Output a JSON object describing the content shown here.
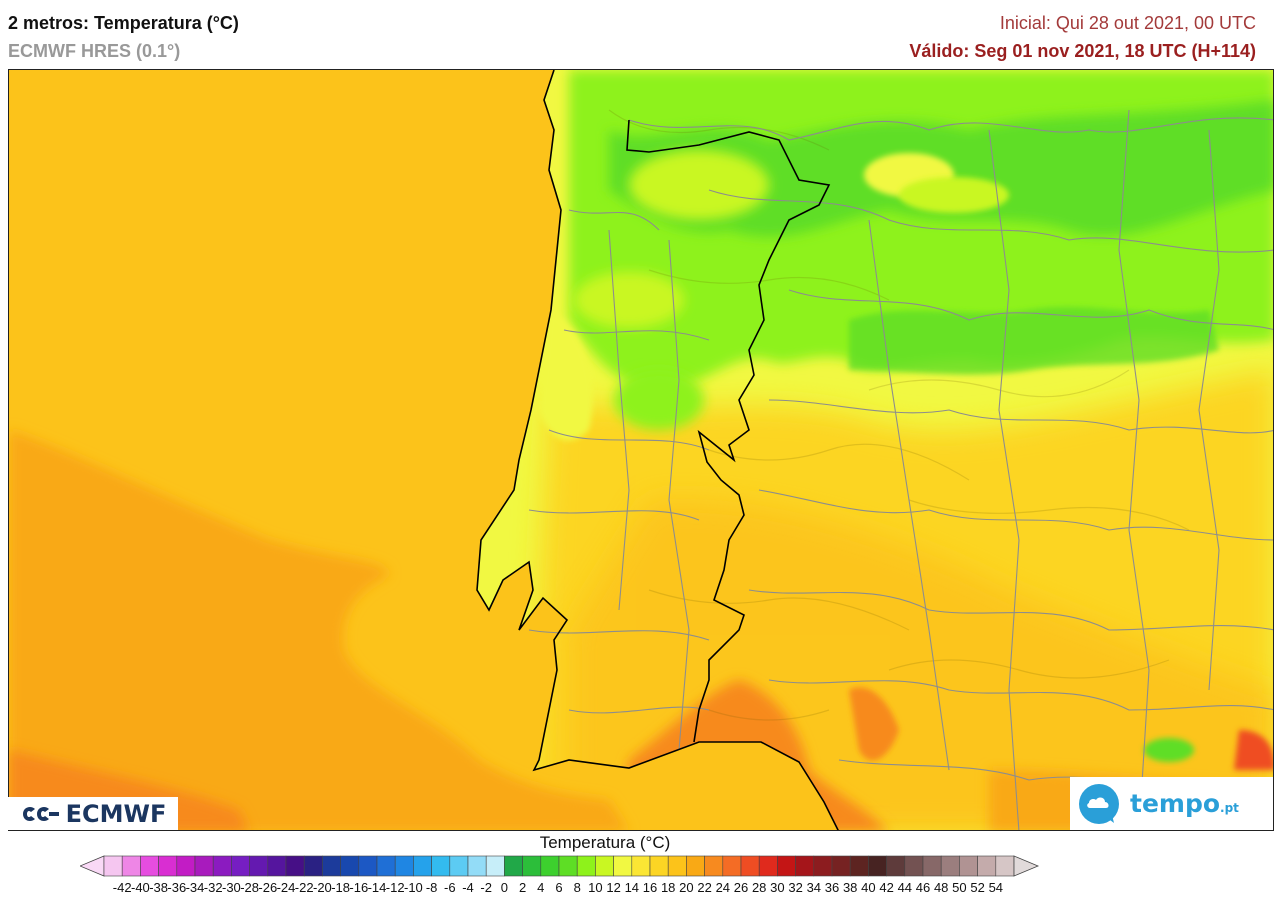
{
  "header": {
    "title": "2 metros: Temperatura (°C)",
    "model": "ECMWF HRES (0.1°)",
    "run_init": "Inicial: Qui 28 out 2021, 00 UTC",
    "run_valid": "Válido: Seg 01 nov 2021, 18 UTC (H+114)"
  },
  "logos": {
    "ecmwf": "ECMWF",
    "tempo": "tempo",
    "tempo_suffix": ".pt"
  },
  "legend": {
    "title": "Temperatura (°C)",
    "ticks": [
      "-42",
      "-40",
      "-38",
      "-36",
      "-34",
      "-32",
      "-30",
      "-28",
      "-26",
      "-24",
      "-22",
      "-20",
      "-18",
      "-16",
      "-14",
      "-12",
      "-10",
      "-8",
      "-6",
      "-4",
      "-2",
      "0",
      "2",
      "4",
      "6",
      "8",
      "10",
      "12",
      "14",
      "16",
      "18",
      "20",
      "22",
      "24",
      "26",
      "28",
      "30",
      "32",
      "34",
      "36",
      "38",
      "40",
      "42",
      "44",
      "46",
      "48",
      "50",
      "52",
      "54"
    ],
    "colors": [
      "#f5c6f0",
      "#ee86e6",
      "#e64de0",
      "#d92ed2",
      "#c21cc5",
      "#a81bbd",
      "#8b1bc0",
      "#761ec2",
      "#6419b0",
      "#55159e",
      "#460f86",
      "#2a2183",
      "#1c3b9b",
      "#1848ae",
      "#1c58c4",
      "#1f6fd6",
      "#1f86e3",
      "#25a2eb",
      "#33bbef",
      "#5ccbf3",
      "#93dcf7",
      "#c7eef9",
      "#21a848",
      "#2cbe3a",
      "#3dd02e",
      "#5ede25",
      "#8ef21b",
      "#c9f722",
      "#f1f842",
      "#fbe634",
      "#fcd524",
      "#fcc31a",
      "#f9a915",
      "#f78a1f",
      "#f46c25",
      "#ef4d23",
      "#e02a1d",
      "#c41515",
      "#a5151a",
      "#8c1c1f",
      "#762222",
      "#5d2421",
      "#472322",
      "#5e3b3b",
      "#735252",
      "#876868",
      "#9b7e7e",
      "#b09393",
      "#c4abab",
      "#d6c6c6"
    ],
    "under_color": "#f9d9f6",
    "over_color": "#e1dada"
  },
  "map": {
    "type": "temperature-field",
    "region": "Península Ibérica",
    "ocean_color": "#fcc31a",
    "south_ocean_color": "#f9a915",
    "cold_color": "#8ef21b",
    "mild_color": "#f1f842",
    "warm_color": "#f78a1f"
  }
}
